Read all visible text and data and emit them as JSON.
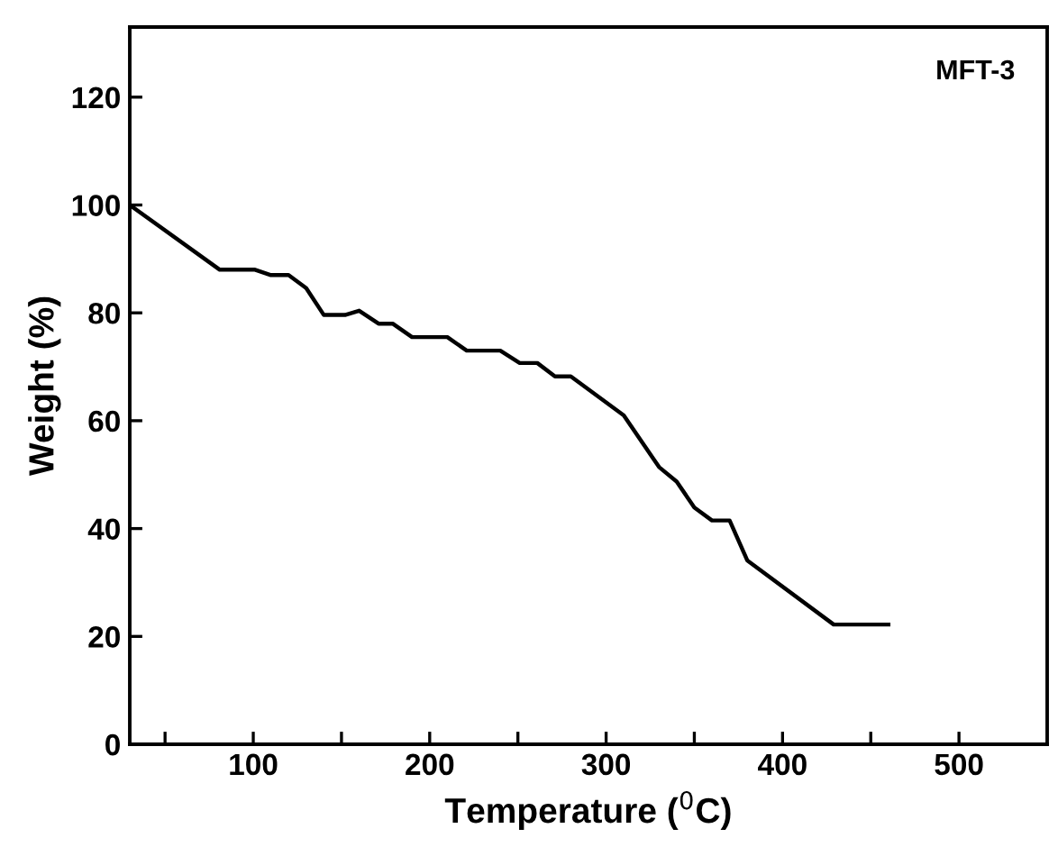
{
  "chart_data": {
    "type": "line",
    "annotations": [
      "MFT-3"
    ],
    "xlabel": "Temperature ($^{0}$C)",
    "ylabel": "Weight (%)",
    "x": [
      30,
      81,
      101,
      110,
      120,
      130,
      140,
      152,
      160,
      171,
      179,
      190,
      210,
      221,
      240,
      251,
      261,
      271,
      280,
      310,
      330,
      340,
      350,
      360,
      370,
      380,
      429,
      460
    ],
    "series": [
      {
        "color": "#000000",
        "values": [
          100,
          88,
          88,
          87,
          87,
          84.6,
          79.6,
          79.6,
          80.4,
          78,
          78,
          75.5,
          75.5,
          73,
          73,
          70.7,
          70.7,
          68.2,
          68.2,
          61,
          51.4,
          48.7,
          43.9,
          41.5,
          41.5,
          34.1,
          22.2,
          22.2
        ]
      }
    ],
    "xlim": [
      30,
      550
    ],
    "ylim": [
      0,
      133
    ],
    "xticks": [
      {
        "value": 50,
        "label": null
      },
      100,
      {
        "value": 150,
        "label": null
      },
      200,
      {
        "value": 250,
        "label": null
      },
      300,
      {
        "value": 350,
        "label": null
      },
      400,
      {
        "value": 450,
        "label": null
      },
      500
    ],
    "yticks": [
      0,
      20,
      40,
      60,
      80,
      100,
      120
    ],
    "grid": false,
    "marker": "none",
    "line_style": "solid"
  }
}
